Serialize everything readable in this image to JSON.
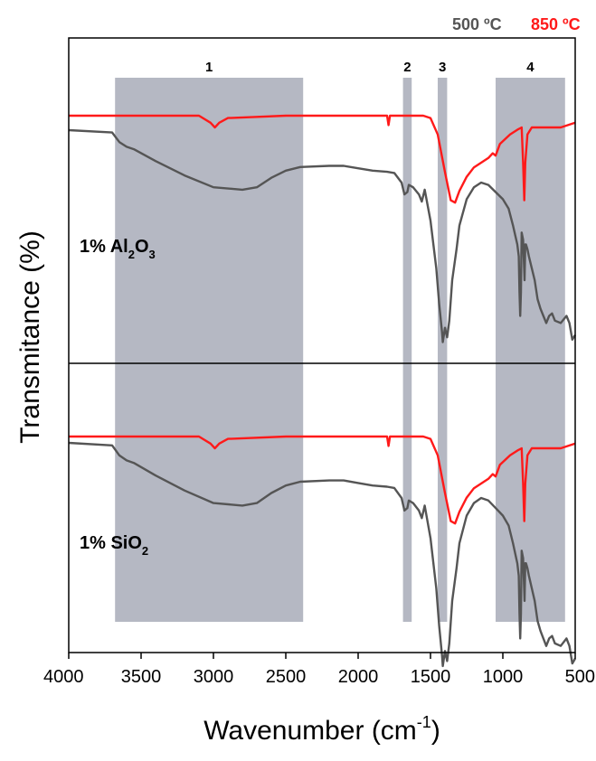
{
  "chart_data": {
    "type": "line",
    "xlabel": {
      "base": "Wavenumber (cm",
      "sup": "-1",
      "end": ")"
    },
    "ylabel": "Transmitance (%)",
    "xlim": [
      4000,
      500
    ],
    "x_ticks": [
      4000,
      3500,
      3000,
      2500,
      2000,
      1500,
      1000,
      500
    ],
    "x_tick_labels": [
      "4000",
      "3500",
      "3000",
      "2500",
      "2000",
      "1500",
      "1000",
      "500"
    ],
    "legend": [
      {
        "label": "500 ºC",
        "color": "#555555"
      },
      {
        "label": "850 ºC",
        "color": "#ff1a1a"
      }
    ],
    "bands": [
      {
        "label": "1",
        "x_range": [
          3680,
          2380
        ]
      },
      {
        "label": "2",
        "x_range": [
          1690,
          1630
        ]
      },
      {
        "label": "3",
        "x_range": [
          1450,
          1385
        ]
      },
      {
        "label": "4",
        "x_range": [
          1050,
          570
        ]
      }
    ],
    "panels": [
      {
        "sample_label": {
          "prefix": "1% Al",
          "sub1": "2",
          "mid": "O",
          "sub2": "3"
        },
        "series": [
          {
            "temperature": "850 ºC",
            "color": "#ff1a1a",
            "x": [
              4000,
              3700,
              3100,
              3020,
              2990,
              2960,
              2900,
              2500,
              1800,
              1790,
              1780,
              1700,
              1550,
              1500,
              1450,
              1400,
              1360,
              1330,
              1300,
              1250,
              1200,
              1150,
              1100,
              1070,
              1050,
              1020,
              950,
              900,
              870,
              860,
              852,
              845,
              830,
              800,
              700,
              600,
              500
            ],
            "y": [
              100,
              100,
              100,
              98.5,
              97.5,
              98.5,
              99.5,
              100,
              100,
              98,
              100,
              100,
              100,
              99.5,
              96,
              88,
              82,
              81.5,
              84,
              87,
              89,
              90,
              91,
              92,
              91.5,
              94,
              96,
              97,
              97.5,
              90,
              82,
              90,
              96,
              97.5,
              97.5,
              97.5,
              98.5
            ]
          },
          {
            "temperature": "500 ºC",
            "color": "#555555",
            "x": [
              4000,
              3700,
              3650,
              3600,
              3550,
              3400,
              3200,
              3000,
              2800,
              2700,
              2600,
              2500,
              2400,
              2200,
              2100,
              2000,
              1900,
              1800,
              1750,
              1700,
              1680,
              1660,
              1650,
              1620,
              1580,
              1560,
              1540,
              1500,
              1460,
              1440,
              1420,
              1415,
              1400,
              1385,
              1370,
              1350,
              1320,
              1300,
              1250,
              1200,
              1150,
              1100,
              1050,
              1000,
              960,
              930,
              900,
              890,
              885,
              880,
              875,
              870,
              860,
              850,
              845,
              840,
              830,
              820,
              800,
              780,
              760,
              740,
              720,
              700,
              680,
              660,
              640,
              600,
              560,
              540,
              520,
              500
            ],
            "y": [
              93,
              92,
              88,
              86,
              85,
              80,
              74,
              69,
              68,
              69,
              73,
              76,
              77.5,
              78,
              78,
              77,
              76,
              75.5,
              75,
              71,
              66,
              67,
              70,
              69,
              66,
              63,
              68,
              55,
              35,
              20,
              8,
              4,
              10,
              6,
              13,
              30,
              43,
              53,
              64,
              69,
              71,
              70,
              67,
              64,
              60,
              53,
              45,
              40,
              25,
              15,
              25,
              50,
              47,
              30,
              45,
              45,
              43,
              40,
              35,
              30,
              22,
              18,
              15,
              12,
              15,
              16,
              13,
              12,
              15,
              12,
              5,
              7
            ]
          }
        ]
      },
      {
        "sample_label": {
          "prefix": "1% SiO",
          "sub1": "2"
        },
        "series": [
          {
            "temperature": "850 ºC",
            "color": "#ff1a1a",
            "x": [
              4000,
              3700,
              3100,
              3020,
              2990,
              2960,
              2900,
              2500,
              1800,
              1790,
              1780,
              1700,
              1550,
              1500,
              1450,
              1400,
              1360,
              1330,
              1300,
              1250,
              1200,
              1150,
              1100,
              1070,
              1050,
              1020,
              950,
              900,
              870,
              860,
              852,
              845,
              830,
              800,
              700,
              600,
              500
            ],
            "y": [
              100,
              100,
              100,
              98.5,
              97.5,
              98.5,
              99.5,
              100,
              100,
              98,
              100,
              100,
              100,
              99.5,
              96,
              88,
              82,
              81.5,
              84,
              87,
              89,
              90,
              91,
              92,
              91.5,
              94,
              96,
              97,
              97.5,
              90,
              82,
              90,
              96,
              97.5,
              97.5,
              97.5,
              98.5
            ]
          },
          {
            "temperature": "500 ºC",
            "color": "#555555",
            "x": [
              4000,
              3700,
              3650,
              3600,
              3550,
              3400,
              3200,
              3000,
              2800,
              2700,
              2600,
              2500,
              2400,
              2200,
              2100,
              2000,
              1900,
              1800,
              1750,
              1700,
              1680,
              1660,
              1650,
              1620,
              1580,
              1560,
              1540,
              1500,
              1460,
              1440,
              1420,
              1415,
              1400,
              1385,
              1370,
              1350,
              1320,
              1300,
              1250,
              1200,
              1150,
              1100,
              1050,
              1000,
              960,
              930,
              900,
              890,
              885,
              880,
              875,
              870,
              860,
              850,
              845,
              840,
              830,
              820,
              800,
              780,
              760,
              740,
              720,
              700,
              680,
              660,
              640,
              600,
              560,
              540,
              520,
              500
            ],
            "y": [
              93,
              92,
              88,
              86,
              85,
              80,
              74,
              69,
              68,
              69,
              73,
              76,
              77.5,
              78,
              78,
              77,
              76,
              75.5,
              75,
              71,
              66,
              67,
              70,
              69,
              66,
              63,
              68,
              55,
              35,
              20,
              8,
              4,
              10,
              6,
              13,
              30,
              43,
              53,
              64,
              69,
              71,
              70,
              67,
              64,
              60,
              53,
              45,
              40,
              25,
              15,
              25,
              50,
              47,
              30,
              45,
              45,
              43,
              40,
              35,
              30,
              22,
              18,
              15,
              12,
              15,
              16,
              13,
              12,
              15,
              12,
              5,
              7
            ]
          }
        ]
      }
    ]
  }
}
